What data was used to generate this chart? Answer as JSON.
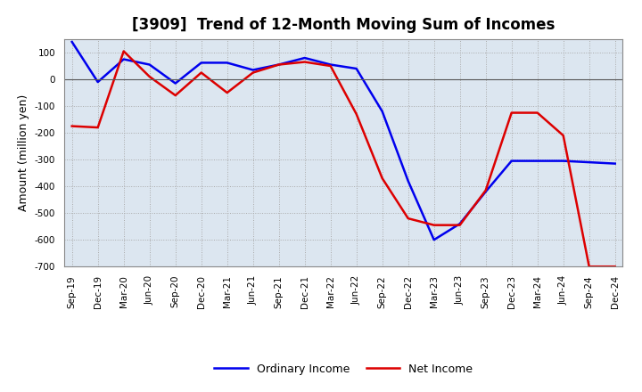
{
  "title": "[3909]  Trend of 12-Month Moving Sum of Incomes",
  "ylabel": "Amount (million yen)",
  "x_labels": [
    "Sep-19",
    "Dec-19",
    "Mar-20",
    "Jun-20",
    "Sep-20",
    "Dec-20",
    "Mar-21",
    "Jun-21",
    "Sep-21",
    "Dec-21",
    "Mar-22",
    "Jun-22",
    "Sep-22",
    "Dec-22",
    "Mar-23",
    "Jun-23",
    "Sep-23",
    "Dec-23",
    "Mar-24",
    "Jun-24",
    "Sep-24",
    "Dec-24"
  ],
  "ordinary_income": [
    140,
    -10,
    75,
    55,
    -15,
    62,
    62,
    35,
    55,
    80,
    55,
    40,
    -120,
    -380,
    -600,
    -540,
    -420,
    -305,
    -305,
    -305,
    -310,
    -315
  ],
  "net_income": [
    -175,
    -180,
    105,
    10,
    -60,
    25,
    -50,
    25,
    55,
    65,
    50,
    -130,
    -370,
    -520,
    -545,
    -545,
    -415,
    -125,
    -125,
    -210,
    -700,
    -700
  ],
  "ordinary_color": "#0000ee",
  "net_color": "#dd0000",
  "ylim": [
    -700,
    150
  ],
  "yticks": [
    -700,
    -600,
    -500,
    -400,
    -300,
    -200,
    -100,
    0,
    100
  ],
  "plot_bg_color": "#dce6f0",
  "fig_bg_color": "#ffffff",
  "grid_color": "#aaaaaa",
  "legend_labels": [
    "Ordinary Income",
    "Net Income"
  ],
  "title_fontsize": 12,
  "ylabel_fontsize": 9,
  "tick_fontsize": 7.5,
  "legend_fontsize": 9
}
